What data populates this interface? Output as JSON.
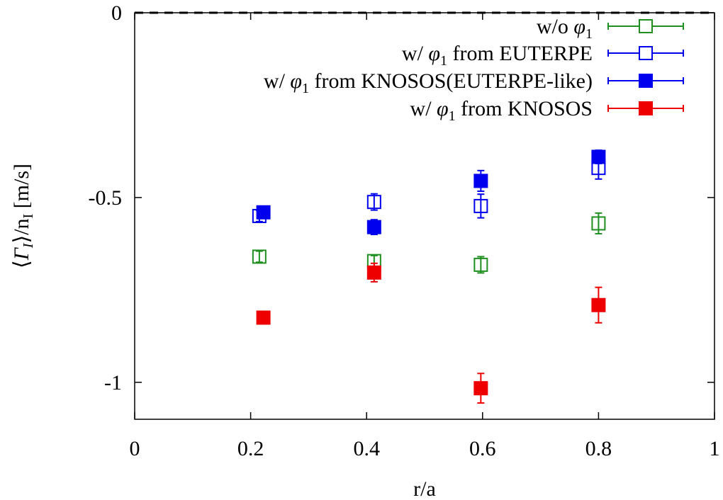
{
  "chart_data": {
    "type": "scatter",
    "xlabel": "r/a",
    "ylabel": "⟨Γ_I⟩/n_I [m/s]",
    "xlim": [
      0,
      1
    ],
    "ylim": [
      -1.1,
      0
    ],
    "x_ticks": [
      "0",
      "0.2",
      "0.4",
      "0.6",
      "0.8",
      "1"
    ],
    "x_tick_values": [
      0,
      0.2,
      0.4,
      0.6,
      0.8,
      1
    ],
    "y_ticks": [
      "0",
      "-0.5",
      "-1"
    ],
    "y_tick_values": [
      0,
      -0.5,
      -1
    ],
    "reference_line": {
      "y": 0,
      "style": "dashed",
      "color": "#000000"
    },
    "legend_placement": "top-right",
    "series": [
      {
        "name": "w/o φ1",
        "legend_text": [
          "w/o ",
          "φ",
          "1",
          ""
        ],
        "color": "#1f8f1f",
        "marker": "open-square",
        "points": [
          {
            "x": 0.215,
            "y": -0.66,
            "err": 0.015
          },
          {
            "x": 0.413,
            "y": -0.672,
            "err": 0.015
          },
          {
            "x": 0.597,
            "y": -0.682,
            "err": 0.022
          },
          {
            "x": 0.8,
            "y": -0.57,
            "err": 0.028
          }
        ]
      },
      {
        "name": "w/ φ1 from EUTERPE",
        "legend_text": [
          "w/ ",
          "φ",
          "1",
          " from EUTERPE"
        ],
        "color": "#0000ee",
        "marker": "open-square",
        "points": [
          {
            "x": 0.215,
            "y": -0.55,
            "err": 0.015
          },
          {
            "x": 0.413,
            "y": -0.512,
            "err": 0.022
          },
          {
            "x": 0.597,
            "y": -0.523,
            "err": 0.032
          },
          {
            "x": 0.8,
            "y": -0.42,
            "err": 0.03
          }
        ]
      },
      {
        "name": "w/ φ1 from KNOSOS(EUTERPE-like)",
        "legend_text": [
          "w/ ",
          "φ",
          "1",
          " from KNOSOS(EUTERPE-like)"
        ],
        "color": "#0000ee",
        "marker": "filled-square",
        "points": [
          {
            "x": 0.222,
            "y": -0.54,
            "err": 0.01
          },
          {
            "x": 0.413,
            "y": -0.58,
            "err": 0.02
          },
          {
            "x": 0.597,
            "y": -0.455,
            "err": 0.028
          },
          {
            "x": 0.8,
            "y": -0.39,
            "err": 0.018
          }
        ]
      },
      {
        "name": "w/ φ1 from KNOSOS",
        "legend_text": [
          "w/ ",
          "φ",
          "1",
          " from KNOSOS"
        ],
        "color": "#ee0000",
        "marker": "filled-square",
        "points": [
          {
            "x": 0.222,
            "y": -0.825,
            "err": 0.005
          },
          {
            "x": 0.413,
            "y": -0.703,
            "err": 0.025
          },
          {
            "x": 0.597,
            "y": -1.016,
            "err": 0.04
          },
          {
            "x": 0.8,
            "y": -0.791,
            "err": 0.048
          }
        ]
      }
    ]
  }
}
